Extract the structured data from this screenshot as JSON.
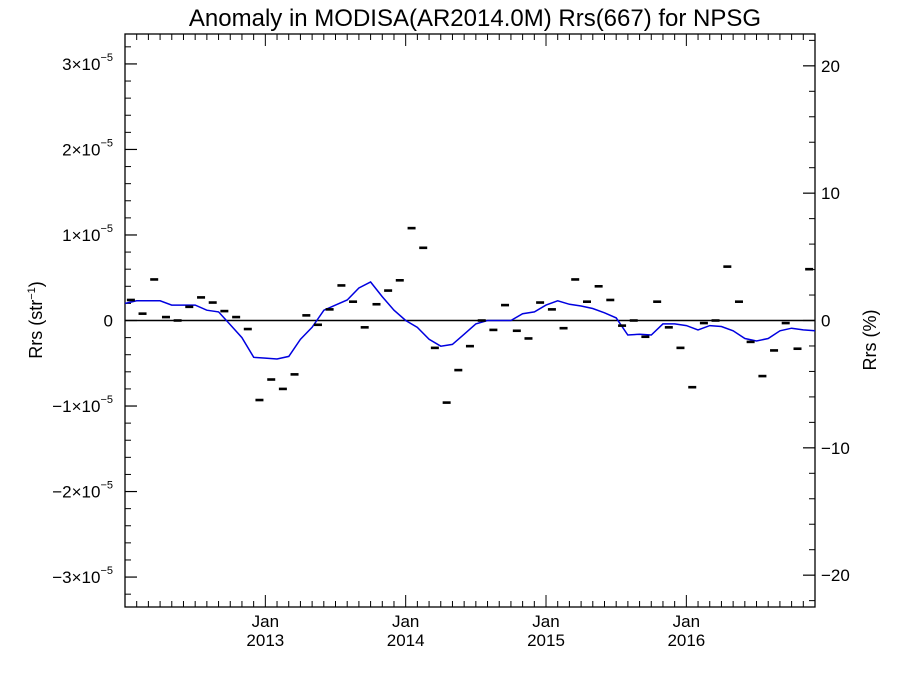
{
  "chart_data": {
    "type": "scatter",
    "title": "Anomaly in MODISA(AR2014.0M) Rrs(667) for NPSG",
    "ylabel": {
      "base": "Rrs (str",
      "sup": "−1",
      "close": ")"
    },
    "ylabel_right": "Rrs (%)",
    "x_range": [
      2012.0,
      2016.9167
    ],
    "ylim": [
      -3.35e-05,
      3.35e-05
    ],
    "ylim_right": [
      -22.5,
      22.5
    ],
    "y_ticks": [
      {
        "value": -3e-05,
        "mant": "−3×10",
        "exp": "−5"
      },
      {
        "value": -2e-05,
        "mant": "−2×10",
        "exp": "−5"
      },
      {
        "value": -1e-05,
        "mant": "−1×10",
        "exp": "−5"
      },
      {
        "value": 0,
        "mant": "0",
        "exp": ""
      },
      {
        "value": 1e-05,
        "mant": "1×10",
        "exp": "−5"
      },
      {
        "value": 2e-05,
        "mant": "2×10",
        "exp": "−5"
      },
      {
        "value": 3e-05,
        "mant": "3×10",
        "exp": "−5"
      }
    ],
    "y_ticks_right": [
      {
        "value": -20,
        "label": "−20"
      },
      {
        "value": -10,
        "label": "−10"
      },
      {
        "value": 0,
        "label": "0"
      },
      {
        "value": 10,
        "label": "10"
      },
      {
        "value": 20,
        "label": "20"
      }
    ],
    "x_ticks": [
      {
        "value": 2013.0,
        "month": "Jan",
        "year": "2013"
      },
      {
        "value": 2014.0,
        "month": "Jan",
        "year": "2014"
      },
      {
        "value": 2015.0,
        "month": "Jan",
        "year": "2015"
      },
      {
        "value": 2016.0,
        "month": "Jan",
        "year": "2016"
      }
    ],
    "zero_line": true,
    "series": [
      {
        "type": "scatter",
        "marker": "dash",
        "color": "#000000",
        "x": [
          2012.042,
          2012.125,
          2012.208,
          2012.292,
          2012.375,
          2012.458,
          2012.542,
          2012.625,
          2012.708,
          2012.792,
          2012.875,
          2012.958,
          2013.042,
          2013.125,
          2013.208,
          2013.292,
          2013.375,
          2013.458,
          2013.542,
          2013.625,
          2013.708,
          2013.792,
          2013.875,
          2013.958,
          2014.042,
          2014.125,
          2014.208,
          2014.292,
          2014.375,
          2014.458,
          2014.542,
          2014.625,
          2014.708,
          2014.792,
          2014.875,
          2014.958,
          2015.042,
          2015.125,
          2015.208,
          2015.292,
          2015.375,
          2015.458,
          2015.542,
          2015.625,
          2015.708,
          2015.792,
          2015.875,
          2015.958,
          2016.042,
          2016.125,
          2016.208,
          2016.292,
          2016.375,
          2016.458,
          2016.542,
          2016.625,
          2016.708,
          2016.792,
          2016.875
        ],
        "y": [
          2.4e-06,
          8e-07,
          4.8e-06,
          4e-07,
          0.0,
          1.6e-06,
          2.7e-06,
          2.1e-06,
          1.1e-06,
          4e-07,
          -1e-06,
          -9.3e-06,
          -6.9e-06,
          -8e-06,
          -6.3e-06,
          6e-07,
          -5e-07,
          1.3e-06,
          4.1e-06,
          2.2e-06,
          -8e-07,
          1.9e-06,
          3.5e-06,
          4.7e-06,
          1.08e-05,
          8.5e-06,
          -3.2e-06,
          -9.6e-06,
          -5.8e-06,
          -3e-06,
          0.0,
          -1.1e-06,
          1.8e-06,
          -1.2e-06,
          -2.1e-06,
          2.1e-06,
          1.3e-06,
          -9e-07,
          4.8e-06,
          2.2e-06,
          4e-06,
          2.4e-06,
          -6e-07,
          0.0,
          -1.9e-06,
          2.2e-06,
          -8e-07,
          -3.2e-06,
          -7.8e-06,
          -3e-07,
          0.0,
          6.3e-06,
          2.2e-06,
          -2.5e-06,
          -6.5e-06,
          -3.5e-06,
          -3e-07,
          -3.3e-06,
          6e-06
        ]
      },
      {
        "type": "line",
        "color": "#0000e0",
        "x": [
          2012.0,
          2012.083,
          2012.167,
          2012.25,
          2012.333,
          2012.417,
          2012.5,
          2012.583,
          2012.667,
          2012.75,
          2012.833,
          2012.917,
          2013.0,
          2013.083,
          2013.167,
          2013.25,
          2013.333,
          2013.417,
          2013.5,
          2013.583,
          2013.667,
          2013.75,
          2013.833,
          2013.917,
          2014.0,
          2014.083,
          2014.167,
          2014.25,
          2014.333,
          2014.417,
          2014.5,
          2014.583,
          2014.667,
          2014.75,
          2014.833,
          2014.917,
          2015.0,
          2015.083,
          2015.167,
          2015.25,
          2015.333,
          2015.417,
          2015.5,
          2015.583,
          2015.667,
          2015.75,
          2015.833,
          2015.917,
          2016.0,
          2016.083,
          2016.167,
          2016.25,
          2016.333,
          2016.417,
          2016.5,
          2016.583,
          2016.667,
          2016.75,
          2016.833,
          2016.917
        ],
        "y": [
          2e-06,
          2.3e-06,
          2.3e-06,
          2.3e-06,
          1.8e-06,
          1.8e-06,
          1.8e-06,
          1.2e-06,
          1e-06,
          -5e-07,
          -2e-06,
          -4.3e-06,
          -4.4e-06,
          -4.5e-06,
          -4.2e-06,
          -2.2e-06,
          -8e-07,
          1.2e-06,
          1.8e-06,
          2.4e-06,
          3.8e-06,
          4.5e-06,
          2.8e-06,
          1.2e-06,
          0.0,
          -8e-07,
          -2.2e-06,
          -3e-06,
          -2.8e-06,
          -1.6e-06,
          -4e-07,
          0.0,
          0.0,
          0.0,
          8e-07,
          1e-06,
          1.8e-06,
          2.3e-06,
          1.9e-06,
          1.7e-06,
          1.4e-06,
          9e-07,
          3e-07,
          -1.7e-06,
          -1.6e-06,
          -1.7e-06,
          -4e-07,
          -4e-07,
          -6e-07,
          -1.1e-06,
          -6e-07,
          -7e-07,
          -1.2e-06,
          -2.1e-06,
          -2.4e-06,
          -2.1e-06,
          -1.2e-06,
          -9e-07,
          -1.1e-06,
          -1.2e-06
        ]
      }
    ]
  }
}
